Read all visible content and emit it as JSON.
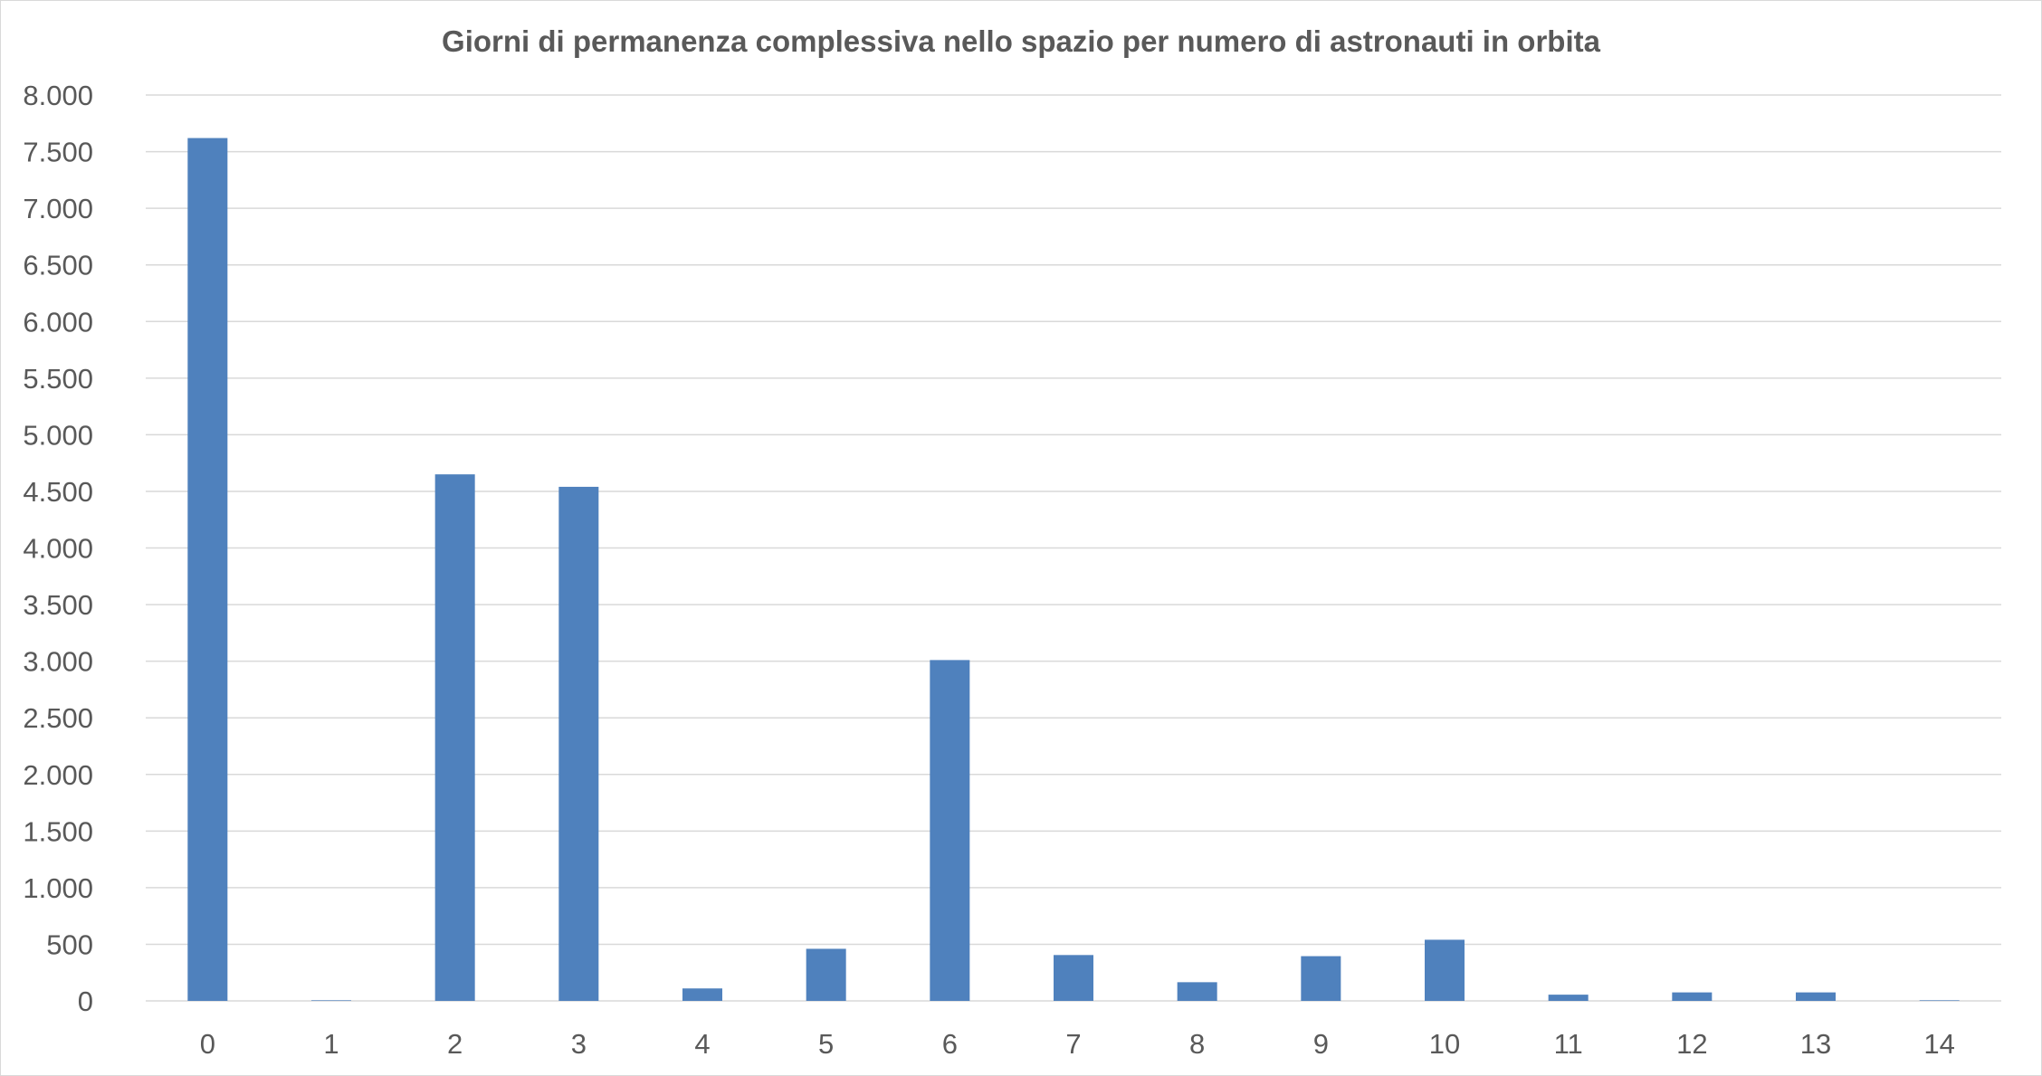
{
  "chart_data": {
    "type": "bar",
    "title": "Giorni di permanenza complessiva nello spazio per numero di astronauti in orbita",
    "xlabel": "",
    "ylabel": "",
    "categories": [
      "0",
      "1",
      "2",
      "3",
      "4",
      "5",
      "6",
      "7",
      "8",
      "9",
      "10",
      "11",
      "12",
      "13",
      "14"
    ],
    "values": [
      7620,
      5,
      4650,
      4540,
      110,
      460,
      3010,
      405,
      165,
      395,
      540,
      55,
      75,
      75,
      5
    ],
    "ylim": [
      0,
      8000
    ],
    "y_ticks": [
      0,
      500,
      1000,
      1500,
      2000,
      2500,
      3000,
      3500,
      4000,
      4500,
      5000,
      5500,
      6000,
      6500,
      7000,
      7500,
      8000
    ],
    "y_tick_labels": [
      "0",
      "500",
      "1.000",
      "1.500",
      "2.000",
      "2.500",
      "3.000",
      "3.500",
      "4.000",
      "4.500",
      "5.000",
      "5.500",
      "6.000",
      "6.500",
      "7.000",
      "7.500",
      "8.000"
    ],
    "grid": true,
    "legend": "none",
    "bar_color": "#4f81bd",
    "grid_color": "#d9d9d9",
    "text_color": "#595959"
  }
}
